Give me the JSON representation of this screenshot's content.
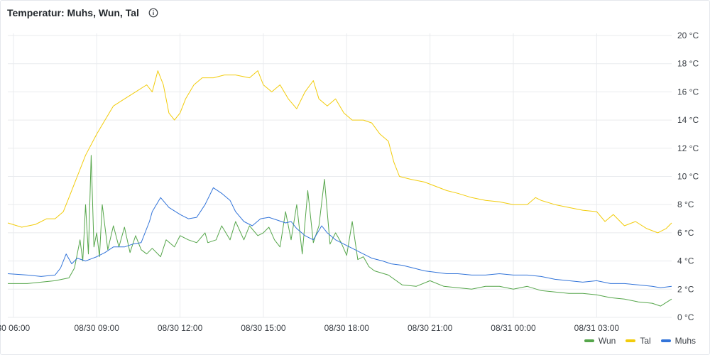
{
  "panel": {
    "title": "Temperatur: Muhs, Wun, Tal",
    "info_icon": "info-circle-icon"
  },
  "chart_data": {
    "type": "line",
    "title": "Temperatur: Muhs, Wun, Tal",
    "x_ticks": [
      "30 06:00",
      "08/30 09:00",
      "08/30 12:00",
      "08/30 15:00",
      "08/30 18:00",
      "08/30 21:00",
      "08/31 00:00",
      "08/31 03:00"
    ],
    "x_tick_hours": [
      6,
      9,
      12,
      15,
      18,
      21,
      24,
      27
    ],
    "x_range_hours": [
      5.8,
      29.7
    ],
    "y_ticks": [
      "0 °C",
      "2 °C",
      "4 °C",
      "6 °C",
      "8 °C",
      "10 °C",
      "12 °C",
      "14 °C",
      "16 °C",
      "18 °C",
      "20 °C"
    ],
    "ylim": [
      0,
      20
    ],
    "unit": "°C",
    "grid": true,
    "legend_position": "bottom-right",
    "series": [
      {
        "name": "Wun",
        "color": "#56a64b",
        "points": [
          [
            5.8,
            2.4
          ],
          [
            6.5,
            2.4
          ],
          [
            7.0,
            2.5
          ],
          [
            7.5,
            2.6
          ],
          [
            8.0,
            2.8
          ],
          [
            8.2,
            3.5
          ],
          [
            8.4,
            5.5
          ],
          [
            8.5,
            4.0
          ],
          [
            8.6,
            8.0
          ],
          [
            8.7,
            4.5
          ],
          [
            8.8,
            11.5
          ],
          [
            8.9,
            5.0
          ],
          [
            9.0,
            6.0
          ],
          [
            9.1,
            4.3
          ],
          [
            9.2,
            8.0
          ],
          [
            9.4,
            4.8
          ],
          [
            9.6,
            6.5
          ],
          [
            9.8,
            5.0
          ],
          [
            10.0,
            6.4
          ],
          [
            10.2,
            4.6
          ],
          [
            10.4,
            5.8
          ],
          [
            10.6,
            4.8
          ],
          [
            10.8,
            4.5
          ],
          [
            11.0,
            4.9
          ],
          [
            11.3,
            4.3
          ],
          [
            11.5,
            5.5
          ],
          [
            11.8,
            5.0
          ],
          [
            12.0,
            5.8
          ],
          [
            12.3,
            5.5
          ],
          [
            12.6,
            5.3
          ],
          [
            12.9,
            6.0
          ],
          [
            13.0,
            5.3
          ],
          [
            13.3,
            5.5
          ],
          [
            13.5,
            6.5
          ],
          [
            13.8,
            5.5
          ],
          [
            14.0,
            6.8
          ],
          [
            14.3,
            5.5
          ],
          [
            14.5,
            6.5
          ],
          [
            14.8,
            5.8
          ],
          [
            15.0,
            6.0
          ],
          [
            15.2,
            6.4
          ],
          [
            15.4,
            5.5
          ],
          [
            15.6,
            5.0
          ],
          [
            15.8,
            7.5
          ],
          [
            16.0,
            5.5
          ],
          [
            16.2,
            8.0
          ],
          [
            16.4,
            4.5
          ],
          [
            16.6,
            9.0
          ],
          [
            16.8,
            5.3
          ],
          [
            17.0,
            6.5
          ],
          [
            17.2,
            9.8
          ],
          [
            17.4,
            5.2
          ],
          [
            17.6,
            6.0
          ],
          [
            17.8,
            5.3
          ],
          [
            18.0,
            4.4
          ],
          [
            18.2,
            6.8
          ],
          [
            18.4,
            4.1
          ],
          [
            18.6,
            4.3
          ],
          [
            18.8,
            3.6
          ],
          [
            19.0,
            3.3
          ],
          [
            19.5,
            3.0
          ],
          [
            20.0,
            2.3
          ],
          [
            20.5,
            2.2
          ],
          [
            21.0,
            2.6
          ],
          [
            21.5,
            2.2
          ],
          [
            22.0,
            2.1
          ],
          [
            22.5,
            2.0
          ],
          [
            23.0,
            2.2
          ],
          [
            23.5,
            2.2
          ],
          [
            24.0,
            2.0
          ],
          [
            24.5,
            2.2
          ],
          [
            25.0,
            1.9
          ],
          [
            25.5,
            1.8
          ],
          [
            26.0,
            1.7
          ],
          [
            26.5,
            1.7
          ],
          [
            27.0,
            1.6
          ],
          [
            27.5,
            1.4
          ],
          [
            28.0,
            1.3
          ],
          [
            28.5,
            1.1
          ],
          [
            29.0,
            1.0
          ],
          [
            29.3,
            0.8
          ],
          [
            29.7,
            1.3
          ]
        ]
      },
      {
        "name": "Tal",
        "color": "#f2cc0c",
        "points": [
          [
            5.8,
            6.7
          ],
          [
            6.3,
            6.4
          ],
          [
            6.8,
            6.6
          ],
          [
            7.2,
            7.0
          ],
          [
            7.5,
            7.0
          ],
          [
            7.8,
            7.5
          ],
          [
            8.0,
            8.5
          ],
          [
            8.3,
            10.0
          ],
          [
            8.6,
            11.5
          ],
          [
            9.0,
            13.0
          ],
          [
            9.3,
            14.0
          ],
          [
            9.6,
            15.0
          ],
          [
            10.0,
            15.5
          ],
          [
            10.4,
            16.0
          ],
          [
            10.8,
            16.5
          ],
          [
            11.0,
            16.0
          ],
          [
            11.2,
            17.5
          ],
          [
            11.4,
            16.5
          ],
          [
            11.6,
            14.5
          ],
          [
            11.8,
            14.0
          ],
          [
            12.0,
            14.5
          ],
          [
            12.2,
            15.5
          ],
          [
            12.5,
            16.5
          ],
          [
            12.8,
            17.0
          ],
          [
            13.2,
            17.0
          ],
          [
            13.6,
            17.2
          ],
          [
            14.0,
            17.2
          ],
          [
            14.5,
            17.0
          ],
          [
            14.8,
            17.5
          ],
          [
            15.0,
            16.5
          ],
          [
            15.3,
            16.0
          ],
          [
            15.6,
            16.5
          ],
          [
            15.9,
            15.5
          ],
          [
            16.2,
            14.8
          ],
          [
            16.5,
            16.0
          ],
          [
            16.8,
            16.8
          ],
          [
            17.0,
            15.5
          ],
          [
            17.3,
            15.0
          ],
          [
            17.6,
            15.5
          ],
          [
            17.9,
            14.5
          ],
          [
            18.2,
            14.0
          ],
          [
            18.6,
            14.0
          ],
          [
            18.9,
            13.8
          ],
          [
            19.2,
            13.0
          ],
          [
            19.5,
            12.5
          ],
          [
            19.7,
            11.0
          ],
          [
            19.9,
            10.0
          ],
          [
            20.3,
            9.8
          ],
          [
            20.8,
            9.6
          ],
          [
            21.2,
            9.3
          ],
          [
            21.6,
            9.0
          ],
          [
            22.0,
            8.8
          ],
          [
            22.5,
            8.5
          ],
          [
            23.0,
            8.3
          ],
          [
            23.5,
            8.2
          ],
          [
            24.0,
            8.0
          ],
          [
            24.5,
            8.0
          ],
          [
            24.8,
            8.5
          ],
          [
            25.0,
            8.3
          ],
          [
            25.5,
            8.0
          ],
          [
            26.0,
            7.8
          ],
          [
            26.5,
            7.6
          ],
          [
            27.0,
            7.5
          ],
          [
            27.3,
            6.8
          ],
          [
            27.6,
            7.3
          ],
          [
            28.0,
            6.5
          ],
          [
            28.4,
            6.8
          ],
          [
            28.8,
            6.3
          ],
          [
            29.2,
            6.0
          ],
          [
            29.5,
            6.3
          ],
          [
            29.7,
            6.7
          ]
        ]
      },
      {
        "name": "Muhs",
        "color": "#3274d9",
        "points": [
          [
            5.8,
            3.1
          ],
          [
            6.5,
            3.0
          ],
          [
            7.0,
            2.9
          ],
          [
            7.5,
            3.0
          ],
          [
            7.7,
            3.5
          ],
          [
            7.9,
            4.5
          ],
          [
            8.1,
            3.8
          ],
          [
            8.3,
            4.2
          ],
          [
            8.6,
            4.0
          ],
          [
            9.0,
            4.3
          ],
          [
            9.3,
            4.6
          ],
          [
            9.6,
            5.0
          ],
          [
            10.0,
            5.0
          ],
          [
            10.3,
            5.2
          ],
          [
            10.6,
            5.3
          ],
          [
            10.9,
            6.8
          ],
          [
            11.0,
            7.5
          ],
          [
            11.3,
            8.5
          ],
          [
            11.6,
            7.8
          ],
          [
            12.0,
            7.3
          ],
          [
            12.3,
            7.0
          ],
          [
            12.6,
            7.1
          ],
          [
            12.9,
            8.0
          ],
          [
            13.2,
            9.2
          ],
          [
            13.5,
            8.8
          ],
          [
            13.8,
            8.3
          ],
          [
            14.0,
            7.5
          ],
          [
            14.3,
            6.8
          ],
          [
            14.6,
            6.5
          ],
          [
            14.9,
            7.0
          ],
          [
            15.2,
            7.1
          ],
          [
            15.5,
            6.9
          ],
          [
            15.8,
            6.7
          ],
          [
            16.0,
            6.8
          ],
          [
            16.2,
            6.3
          ],
          [
            16.5,
            5.8
          ],
          [
            16.8,
            5.5
          ],
          [
            17.1,
            6.5
          ],
          [
            17.3,
            6.0
          ],
          [
            17.6,
            5.5
          ],
          [
            18.0,
            5.1
          ],
          [
            18.3,
            4.8
          ],
          [
            18.6,
            4.5
          ],
          [
            18.9,
            4.2
          ],
          [
            19.3,
            4.0
          ],
          [
            19.6,
            3.8
          ],
          [
            20.0,
            3.7
          ],
          [
            20.4,
            3.5
          ],
          [
            20.8,
            3.3
          ],
          [
            21.2,
            3.2
          ],
          [
            21.6,
            3.1
          ],
          [
            22.0,
            3.1
          ],
          [
            22.5,
            3.0
          ],
          [
            23.0,
            3.0
          ],
          [
            23.5,
            3.1
          ],
          [
            24.0,
            3.0
          ],
          [
            24.5,
            3.0
          ],
          [
            25.0,
            2.9
          ],
          [
            25.5,
            2.7
          ],
          [
            26.0,
            2.6
          ],
          [
            26.5,
            2.5
          ],
          [
            27.0,
            2.6
          ],
          [
            27.5,
            2.4
          ],
          [
            28.0,
            2.4
          ],
          [
            28.5,
            2.3
          ],
          [
            29.0,
            2.2
          ],
          [
            29.3,
            2.1
          ],
          [
            29.7,
            2.2
          ]
        ]
      }
    ]
  }
}
